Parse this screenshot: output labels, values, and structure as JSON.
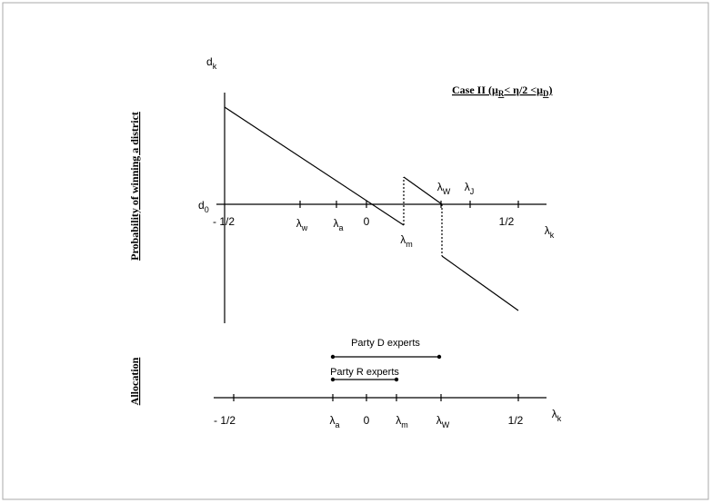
{
  "top_panel": {
    "y_axis_symbol": {
      "base": "d",
      "sub": "k"
    },
    "y_label": "Probability of winning a district",
    "case_title": [
      {
        "text": "Case II (μ"
      },
      {
        "text": "R",
        "sub": true
      },
      {
        "text": "< η/2 <μ"
      },
      {
        "text": "D",
        "sub": true
      },
      {
        "text": ")"
      }
    ],
    "origin_label": {
      "base": "d",
      "sub": "0"
    },
    "axis_labels": [
      {
        "base": "- 1/2"
      },
      {
        "base": "λ",
        "sub": "w"
      },
      {
        "base": "λ",
        "sub": "a"
      },
      {
        "base": "0"
      },
      {
        "base": "λ",
        "sub": "m"
      },
      {
        "base": "λ",
        "sub": "W"
      },
      {
        "base": "λ",
        "sub": "J"
      },
      {
        "base": "1/2"
      },
      {
        "base": "λ",
        "sub": "k"
      }
    ]
  },
  "bottom_panel": {
    "y_label": "Allocation",
    "party_d": "Party D experts",
    "party_r": "Party R experts",
    "axis_labels": [
      {
        "base": "- 1/2"
      },
      {
        "base": "λ",
        "sub": "a"
      },
      {
        "base": "0"
      },
      {
        "base": "λ",
        "sub": "m"
      },
      {
        "base": "λ",
        "sub": "W"
      },
      {
        "base": "1/2"
      },
      {
        "base": "λ",
        "sub": "k"
      }
    ]
  }
}
